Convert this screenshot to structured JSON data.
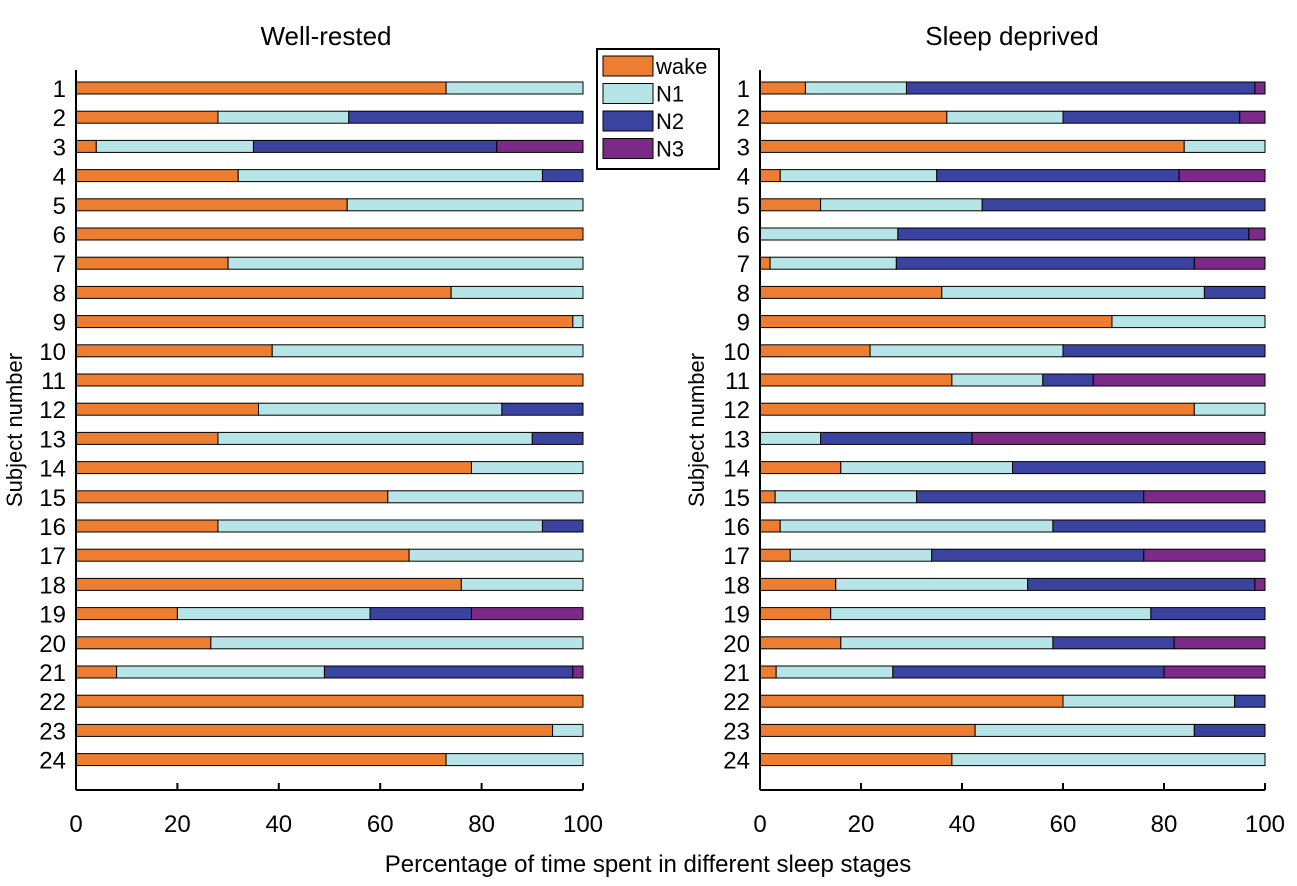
{
  "chart_data": [
    {
      "type": "bar",
      "orientation": "horizontal",
      "stacked": true,
      "title": "Well-rested",
      "ylabel": "Subject number",
      "xlabel": "Percentage of time spent in different sleep stages",
      "xlim": [
        0,
        100
      ],
      "xticks": [
        "0",
        "20",
        "40",
        "60",
        "80",
        "100"
      ],
      "categories": [
        "1",
        "2",
        "3",
        "4",
        "5",
        "6",
        "7",
        "8",
        "9",
        "10",
        "11",
        "12",
        "13",
        "14",
        "15",
        "16",
        "17",
        "18",
        "19",
        "20",
        "21",
        "22",
        "23",
        "24"
      ],
      "series": [
        {
          "name": "wake",
          "color": "#ED7D31",
          "values": [
            73,
            28,
            4,
            32,
            53.5,
            100,
            30,
            74,
            98,
            38.7,
            100,
            36,
            28,
            78,
            61.5,
            28,
            65.7,
            76,
            20,
            26.6,
            8,
            100,
            94,
            73
          ]
        },
        {
          "name": "N1",
          "color": "#B7E4E6",
          "values": [
            27,
            25.8,
            31,
            60,
            46.5,
            0,
            70,
            26,
            2,
            61.3,
            0,
            48,
            62,
            22,
            38.5,
            64,
            34.3,
            24,
            38,
            73.4,
            41,
            0,
            6,
            27
          ]
        },
        {
          "name": "N2",
          "color": "#3A44A0",
          "values": [
            0,
            46.2,
            48,
            8,
            0,
            0,
            0,
            0,
            0,
            0,
            0,
            16,
            10,
            0,
            0,
            8,
            0,
            0,
            20,
            0,
            49,
            0,
            0,
            0
          ]
        },
        {
          "name": "N3",
          "color": "#7B2A87",
          "values": [
            0,
            0,
            17,
            0,
            0,
            0,
            0,
            0,
            0,
            0,
            0,
            0,
            0,
            0,
            0,
            0,
            0,
            0,
            22,
            0,
            2,
            0,
            0,
            0
          ]
        }
      ]
    },
    {
      "type": "bar",
      "orientation": "horizontal",
      "stacked": true,
      "title": "Sleep deprived",
      "ylabel": "Subject number",
      "xlim": [
        0,
        100
      ],
      "xticks": [
        "0",
        "20",
        "40",
        "60",
        "80",
        "100"
      ],
      "categories": [
        "1",
        "2",
        "3",
        "4",
        "5",
        "6",
        "7",
        "8",
        "9",
        "10",
        "11",
        "12",
        "13",
        "14",
        "15",
        "16",
        "17",
        "18",
        "19",
        "20",
        "21",
        "22",
        "23",
        "24"
      ],
      "series": [
        {
          "name": "wake",
          "color": "#ED7D31",
          "values": [
            9,
            37,
            84,
            4,
            12,
            0,
            2,
            36,
            69.7,
            21.8,
            38,
            86,
            0,
            16,
            3,
            4,
            6,
            15,
            14,
            16,
            3.2,
            60,
            42.6,
            38
          ]
        },
        {
          "name": "N1",
          "color": "#B7E4E6",
          "values": [
            20,
            23,
            16,
            31,
            32,
            27.3,
            25,
            52,
            30.3,
            38.2,
            18,
            14,
            12,
            34,
            28,
            54,
            28,
            38,
            63.4,
            42,
            23.1,
            34,
            43.4,
            62
          ]
        },
        {
          "name": "N2",
          "color": "#3A44A0",
          "values": [
            69,
            35,
            0,
            48,
            56,
            69.5,
            59,
            12,
            0,
            40,
            10,
            0,
            30,
            50,
            45,
            42,
            42,
            45,
            22.6,
            24,
            53.7,
            6,
            14,
            0
          ]
        },
        {
          "name": "N3",
          "color": "#7B2A87",
          "values": [
            2,
            5,
            0,
            17,
            0,
            3.2,
            14,
            0,
            0,
            0,
            34,
            0,
            58,
            0,
            24,
            0,
            24,
            2,
            0,
            18,
            20,
            0,
            0,
            0
          ]
        }
      ]
    }
  ],
  "legend": {
    "position": "top-center",
    "items": [
      "wake",
      "N1",
      "N2",
      "N3"
    ]
  }
}
